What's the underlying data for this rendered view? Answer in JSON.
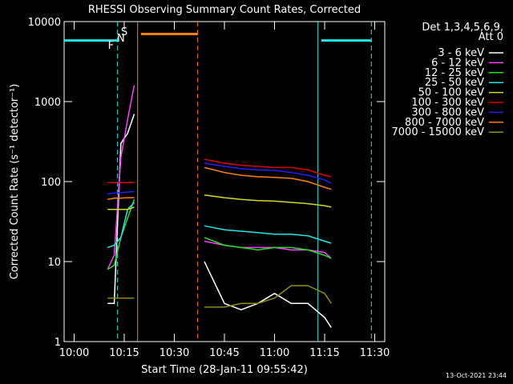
{
  "chart_data": {
    "type": "line",
    "title": "RHESSI Observing Summary Count Rates, Corrected",
    "x_label": "Start Time (28-Jan-11 09:55:42)",
    "y_label": "Corrected Count Rate (s⁻¹ detector⁻¹)",
    "legend_header": [
      "Det 1,3,4,5,6,9,",
      "Att 0"
    ],
    "timestamp": "13-Oct-2021 23:44",
    "log_y": true,
    "xlim": [
      "09:57",
      "11:33"
    ],
    "xticks": [
      "10:00",
      "10:15",
      "10:30",
      "10:45",
      "11:00",
      "11:15",
      "11:30"
    ],
    "ylim": [
      1,
      10000
    ],
    "yticks": [
      1,
      10,
      100,
      1000,
      10000
    ],
    "x": [
      "10:10",
      "10:12",
      "10:14",
      "10:16",
      "10:18",
      "10:28",
      "10:39",
      "10:45",
      "10:50",
      "10:55",
      "11:00",
      "11:05",
      "11:10",
      "11:15",
      "11:17"
    ],
    "series": [
      {
        "name": "3 - 6 keV",
        "color": "#ffffff",
        "values": [
          3,
          3,
          300,
          400,
          700,
          null,
          10,
          3,
          2.5,
          3,
          4,
          3,
          3,
          2,
          1.5
        ]
      },
      {
        "name": "6 - 12 keV",
        "color": "#ff40ff",
        "values": [
          8,
          12,
          200,
          600,
          1600,
          null,
          18,
          16,
          15,
          15,
          15,
          14,
          14,
          13,
          11
        ]
      },
      {
        "name": "12 - 25 keV",
        "color": "#20e020",
        "values": [
          8,
          9,
          20,
          35,
          60,
          null,
          20,
          16,
          15,
          14,
          15,
          15,
          14,
          12,
          11
        ]
      },
      {
        "name": "25 - 50 keV",
        "color": "#20e8e8",
        "values": [
          15,
          16,
          20,
          45,
          55,
          null,
          28,
          25,
          24,
          23,
          22,
          22,
          21,
          18,
          17
        ]
      },
      {
        "name": "50 - 100 keV",
        "color": "#d8d820",
        "values": [
          45,
          45,
          45,
          45,
          48,
          null,
          68,
          63,
          60,
          58,
          57,
          55,
          53,
          50,
          48
        ]
      },
      {
        "name": "100 - 300 keV",
        "color": "#e00000",
        "values": [
          97,
          97,
          97,
          97,
          97,
          null,
          190,
          170,
          160,
          155,
          150,
          150,
          140,
          120,
          115
        ]
      },
      {
        "name": "300 - 800 keV",
        "color": "#2020ff",
        "values": [
          70,
          72,
          73,
          74,
          75,
          null,
          170,
          155,
          145,
          140,
          138,
          130,
          120,
          105,
          95
        ]
      },
      {
        "name": "800 - 7000 keV",
        "color": "#ff8000",
        "values": [
          60,
          62,
          62,
          63,
          63,
          null,
          150,
          130,
          120,
          115,
          113,
          110,
          100,
          85,
          80
        ]
      },
      {
        "name": "7000 - 15000 keV",
        "color": "#909000",
        "values": [
          3.5,
          3.5,
          3.5,
          3.5,
          3.5,
          null,
          2.7,
          2.7,
          3,
          3,
          3.5,
          5,
          5,
          4,
          3
        ]
      }
    ],
    "flags": [
      {
        "label": "F",
        "color": "#e00000",
        "time": "10:11",
        "level": 5000
      },
      {
        "label": "N",
        "color": "#20e8e8",
        "time": "10:14",
        "level": 6200
      },
      {
        "label": "S",
        "color": "#ff8000",
        "time": "10:15",
        "level": 7400
      }
    ],
    "bars": [
      {
        "start": "09:57",
        "end": "10:13",
        "level": 5800,
        "color": "#20e8e8"
      },
      {
        "start": "11:14",
        "end": "11:29",
        "level": 5800,
        "color": "#20e8e8"
      },
      {
        "start": "10:20",
        "end": "10:37",
        "level": 7000,
        "color": "#ff8000"
      }
    ],
    "markers": [
      {
        "time": "10:13",
        "color": "#20e8e8",
        "dashed": true
      },
      {
        "time": "10:19",
        "color": "#ff8000",
        "dashed": false
      },
      {
        "time": "10:37",
        "color": "#ff8000",
        "dashed": true
      },
      {
        "time": "11:13",
        "color": "#20e8e8",
        "dashed": false
      },
      {
        "time": "11:29",
        "color": "#20e8e8",
        "dashed": true
      }
    ]
  }
}
